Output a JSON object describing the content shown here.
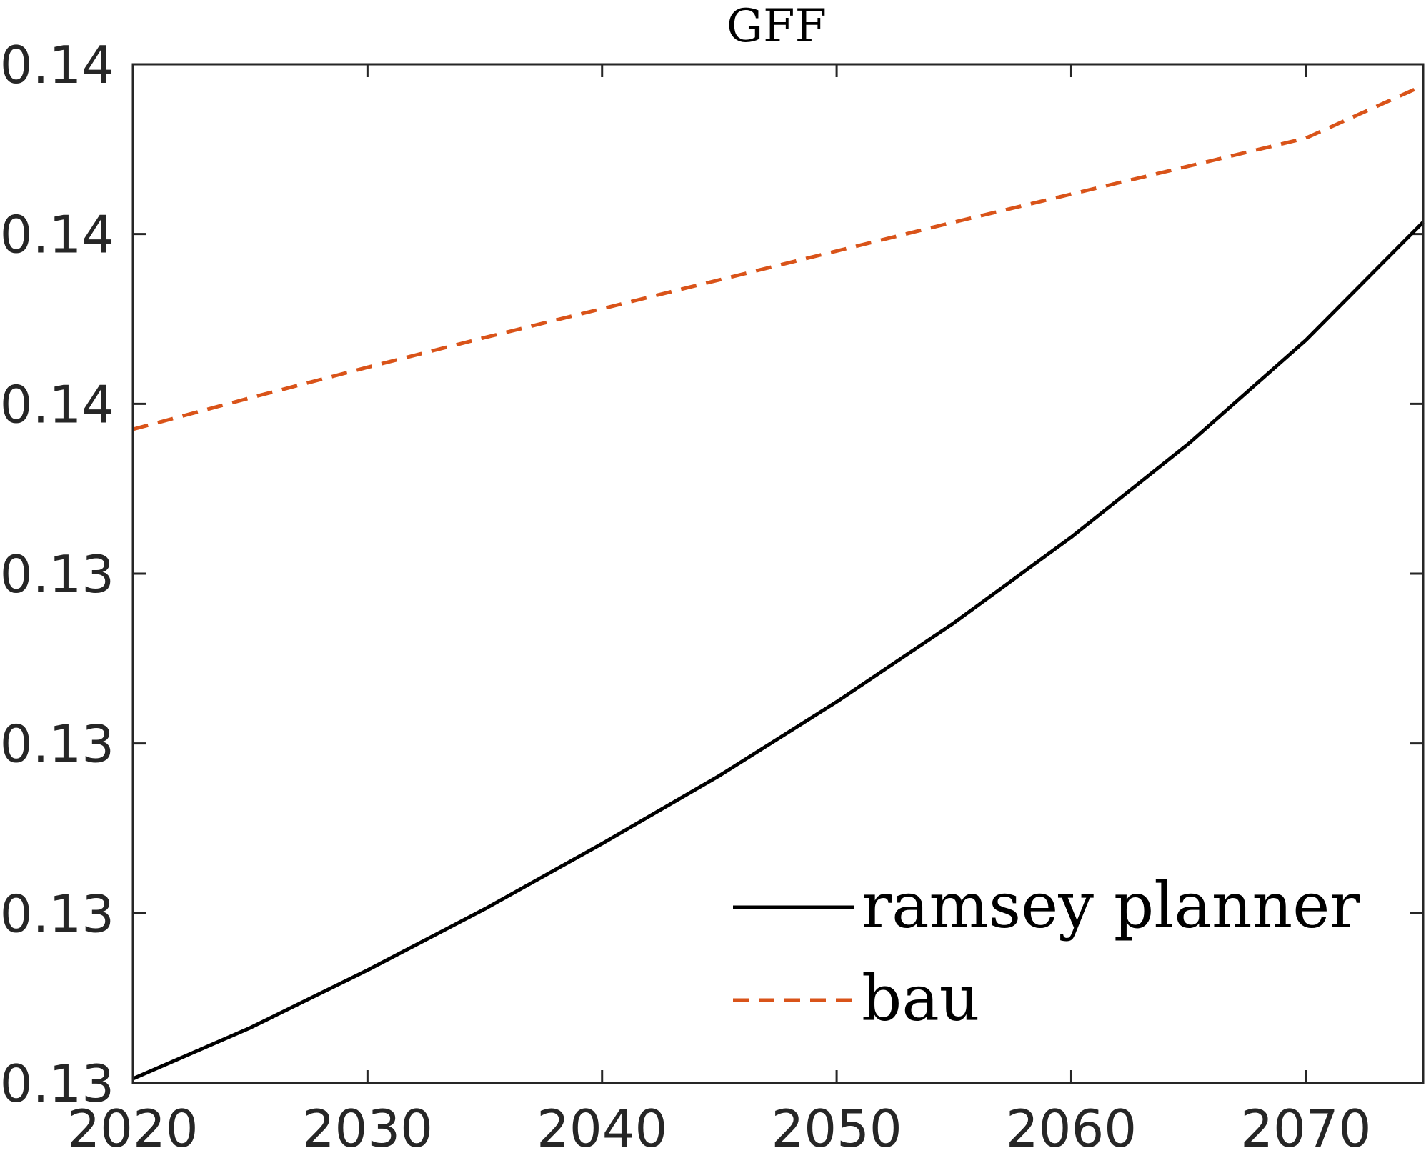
{
  "chart_data": {
    "type": "line",
    "title": "GFF",
    "xlabel": "",
    "ylabel": "",
    "xlim": [
      2020,
      2075
    ],
    "ylim": [
      0.13,
      0.142
    ],
    "grid": false,
    "x_ticks": [
      2020,
      2030,
      2040,
      2050,
      2060,
      2070
    ],
    "x_tick_labels": [
      "2020",
      "2030",
      "2040",
      "2050",
      "2060",
      "2070"
    ],
    "y_ticks": [
      0.13,
      0.132,
      0.134,
      0.136,
      0.138,
      0.14,
      0.142
    ],
    "y_tick_labels": [
      "0.13",
      "0.13",
      "0.13",
      "0.13",
      "0.14",
      "0.14",
      "0.14"
    ],
    "legend_position": "bottom-right",
    "series": [
      {
        "name": "ramsey planner",
        "color": "#000000",
        "style": "solid",
        "x": [
          2020,
          2025,
          2030,
          2035,
          2040,
          2045,
          2050,
          2055,
          2060,
          2065,
          2070,
          2075
        ],
        "y": [
          0.13005,
          0.13065,
          0.13133,
          0.13205,
          0.13282,
          0.13362,
          0.13449,
          0.13542,
          0.13643,
          0.13753,
          0.13875,
          0.14014
        ]
      },
      {
        "name": "bau",
        "color": "#D95319",
        "style": "dashed",
        "x": [
          2020,
          2025,
          2030,
          2035,
          2040,
          2045,
          2050,
          2055,
          2060,
          2065,
          2070,
          2075
        ],
        "y": [
          0.1377,
          0.13807,
          0.13843,
          0.13878,
          0.13912,
          0.13946,
          0.1398,
          0.14014,
          0.14047,
          0.1408,
          0.14113,
          0.14175
        ]
      }
    ]
  }
}
